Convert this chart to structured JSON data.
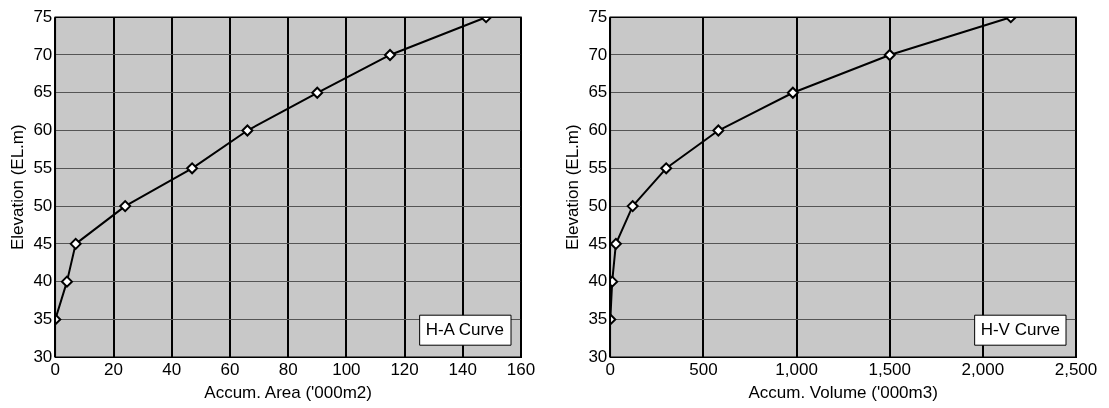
{
  "chart_data": [
    {
      "type": "line",
      "xlabel": "Accum. Area ('000m2)",
      "ylabel": "Elevation (EL.m)",
      "annotations": [
        "H-A Curve"
      ],
      "marker": "diamond",
      "grid": true,
      "x": [
        0,
        4,
        7,
        24,
        47,
        66,
        90,
        115,
        148
      ],
      "series": [
        {
          "color": "#000000",
          "values": [
            35,
            40,
            45,
            50,
            55,
            60,
            65,
            70,
            75
          ]
        }
      ],
      "xlim": [
        0,
        160
      ],
      "xticks": [
        0,
        20,
        40,
        60,
        80,
        100,
        120,
        140,
        160
      ],
      "ylim": [
        30,
        75
      ],
      "yticks": [
        30,
        35,
        40,
        45,
        50,
        55,
        60,
        65,
        70,
        75
      ]
    },
    {
      "type": "line",
      "xlabel": "Accum. Volume ('000m3)",
      "ylabel": "Elevation (EL.m)",
      "annotations": [
        "H-V Curve"
      ],
      "marker": "diamond",
      "grid": true,
      "x": [
        0,
        10,
        30,
        120,
        300,
        580,
        980,
        1500,
        2150
      ],
      "series": [
        {
          "color": "#000000",
          "values": [
            35,
            40,
            45,
            50,
            55,
            60,
            65,
            70,
            75
          ]
        }
      ],
      "xlim": [
        0,
        2500
      ],
      "xticks": [
        0,
        500,
        {
          "value": 1000,
          "label": "1,000"
        },
        {
          "value": 1500,
          "label": "1,500"
        },
        {
          "value": 2000,
          "label": "2,000"
        },
        {
          "value": 2500,
          "label": "2,500"
        }
      ],
      "ylim": [
        30,
        75
      ],
      "yticks": [
        30,
        35,
        40,
        45,
        50,
        55,
        60,
        65,
        70,
        75
      ]
    }
  ]
}
